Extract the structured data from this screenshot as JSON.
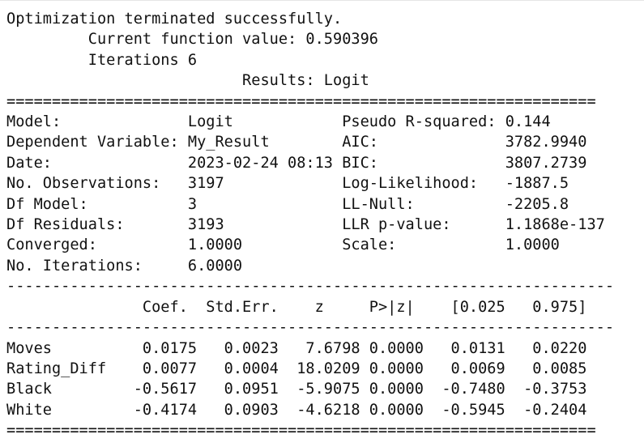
{
  "output": {
    "lines": [
      "Optimization terminated successfully.",
      "         Current function value: 0.590396",
      "         Iterations 6",
      "                          Results: Logit",
      "=================================================================",
      "Model:              Logit            Pseudo R-squared: 0.144",
      "Dependent Variable: My_Result        AIC:              3782.9940",
      "Date:               2023-02-24 08:13 BIC:              3807.2739",
      "No. Observations:   3197             Log-Likelihood:   -1887.5",
      "Df Model:           3                LL-Null:          -2205.8",
      "Df Residuals:       3193             LLR p-value:      1.1868e-137",
      "Converged:          1.0000           Scale:            1.0000",
      "No. Iterations:     6.0000",
      "-------------------------------------------------------------------",
      "               Coef.  Std.Err.    z     P>|z|    [0.025   0.975]",
      "-------------------------------------------------------------------",
      "Moves          0.0175   0.0023   7.6798 0.0000   0.0131   0.0220",
      "Rating_Diff    0.0077   0.0004  18.0209 0.0000   0.0069   0.0085",
      "Black         -0.5617   0.0951  -5.9075 0.0000  -0.7480  -0.3753",
      "White         -0.4174   0.0903  -4.6218 0.0000  -0.5945  -0.2404",
      "================================================================="
    ]
  }
}
